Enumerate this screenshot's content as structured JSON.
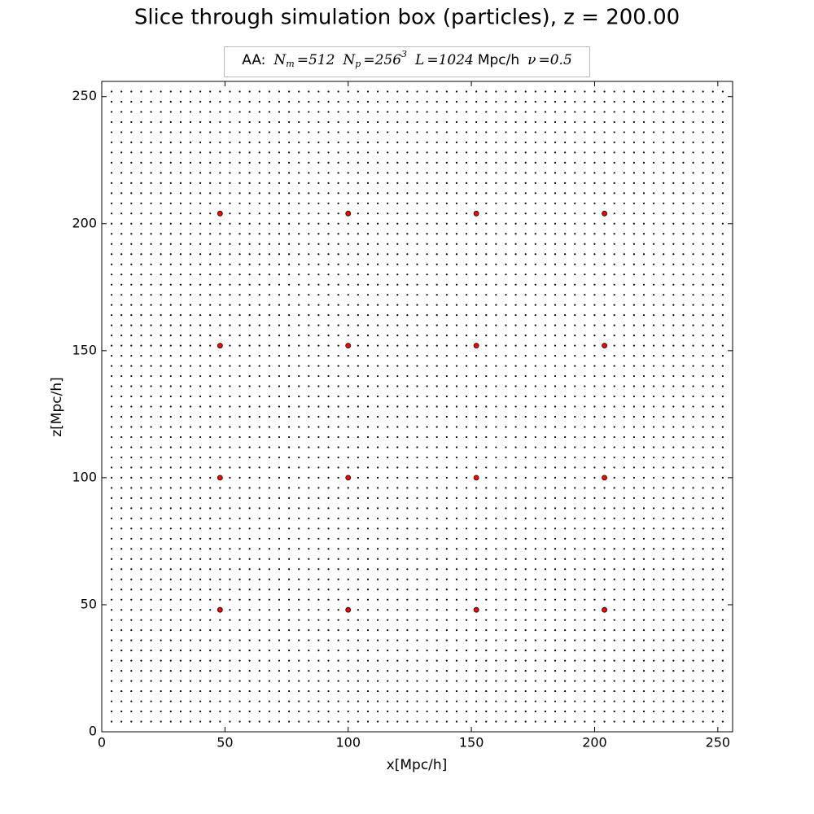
{
  "chart_data": {
    "type": "scatter",
    "title": "Slice through simulation box (particles), z = 200.00",
    "legend_text": [
      "AA:",
      "N",
      "m",
      "=512",
      "N",
      "p",
      "=256",
      "3",
      "L",
      "=1024",
      "Mpc/h",
      "ν",
      "=0.5"
    ],
    "xlabel": "x[Mpc/h]",
    "ylabel": "z[Mpc/h]",
    "xlim": [
      0,
      256
    ],
    "ylim": [
      0,
      256
    ],
    "xticks": [
      0,
      50,
      100,
      150,
      200,
      250
    ],
    "yticks": [
      0,
      50,
      100,
      150,
      200,
      250
    ],
    "series": [
      {
        "color": "#000000",
        "x": [
          4,
          8,
          12,
          16,
          20,
          24,
          28,
          32,
          36,
          40,
          44,
          48,
          52,
          56,
          60,
          64,
          68,
          72,
          76,
          80,
          84,
          88,
          92,
          96,
          100,
          104,
          108,
          112,
          116,
          120,
          124,
          128,
          132,
          136,
          140,
          144,
          148,
          152,
          156,
          160,
          164,
          168,
          172,
          176,
          180,
          184,
          188,
          192,
          196,
          200,
          204,
          208,
          212,
          216,
          220,
          224,
          228,
          232,
          236,
          240,
          244,
          248,
          252
        ],
        "y": [
          4,
          8,
          12,
          16,
          20,
          24,
          28,
          32,
          36,
          40,
          44,
          48,
          52,
          56,
          60,
          64,
          68,
          72,
          76,
          80,
          84,
          88,
          92,
          96,
          100,
          104,
          108,
          112,
          116,
          120,
          124,
          128,
          132,
          136,
          140,
          144,
          148,
          152,
          156,
          160,
          164,
          168,
          172,
          176,
          180,
          184,
          188,
          192,
          196,
          200,
          204,
          208,
          212,
          216,
          220,
          224,
          228,
          232,
          236,
          240,
          244,
          248,
          252
        ]
      },
      {
        "color": "#ff0000",
        "x": [
          48,
          100,
          152,
          204
        ],
        "y": [
          48,
          100,
          152,
          204
        ]
      }
    ]
  }
}
